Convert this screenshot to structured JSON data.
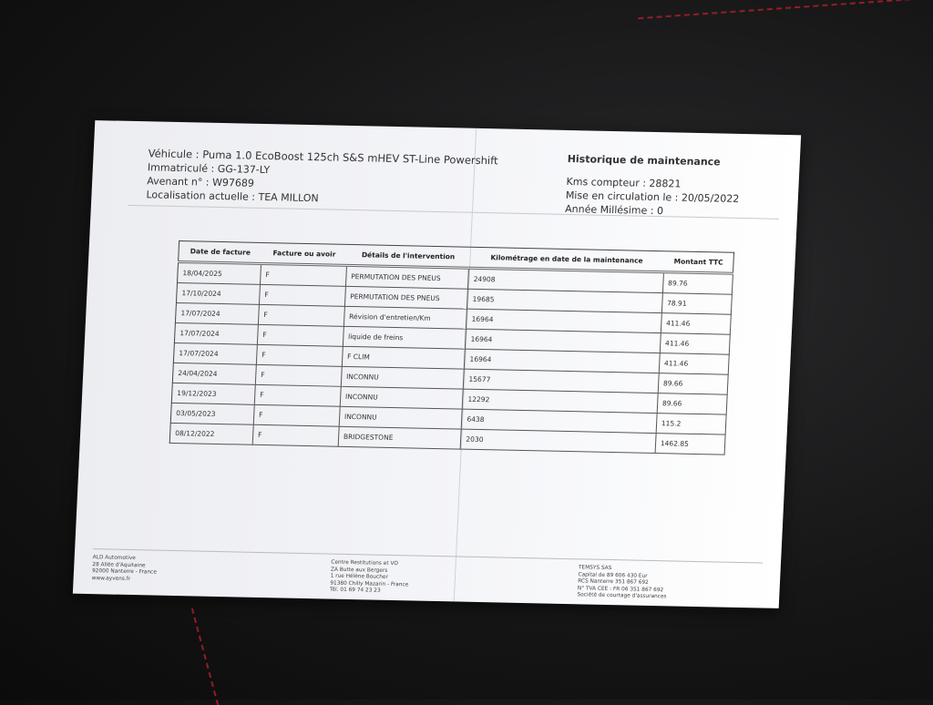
{
  "vehicle_info": {
    "vehicule": "Véhicule : Puma 1.0 EcoBoost 125ch S&S mHEV ST-Line Powershift",
    "immatricule": "Immatriculé : GG-137-LY",
    "avenant": "Avenant n° : W97689",
    "localisation": "Localisation actuelle : TEA MILLON"
  },
  "history": {
    "title": "Historique de maintenance",
    "kms": "Kms compteur : 28821",
    "mise_en_circulation": "Mise en circulation le : 20/05/2022",
    "annee_millesime": "Année Millésime : 0"
  },
  "table": {
    "headers": [
      "Date de facture",
      "Facture ou avoir",
      "Détails de l'intervention",
      "Kilométrage en date de la maintenance",
      "Montant TTC"
    ],
    "rows": [
      [
        "18/04/2025",
        "F",
        "PERMUTATION DES PNEUS",
        "24908",
        "89.76"
      ],
      [
        "17/10/2024",
        "F",
        "PERMUTATION DES PNEUS",
        "19685",
        "78.91"
      ],
      [
        "17/07/2024",
        "F",
        "Révision d'entretien/Km",
        "16964",
        "411.46"
      ],
      [
        "17/07/2024",
        "F",
        "liquide de freins",
        "16964",
        "411.46"
      ],
      [
        "17/07/2024",
        "F",
        "F CLIM",
        "16964",
        "411.46"
      ],
      [
        "24/04/2024",
        "F",
        "INCONNU",
        "15677",
        "89.66"
      ],
      [
        "19/12/2023",
        "F",
        "INCONNU",
        "12292",
        "89.66"
      ],
      [
        "03/05/2023",
        "F",
        "INCONNU",
        "6438",
        "115.2"
      ],
      [
        "08/12/2022",
        "F",
        "BRIDGESTONE",
        "2030",
        "1462.85"
      ]
    ]
  },
  "footer": [
    [
      "ALD Automotive",
      "28 Allée d'Aquitaine",
      "92000 Nanterre - France",
      "www.ayvens.fr"
    ],
    [
      "Centre Restitutions et VO",
      "ZA Butte aux Bergers",
      "1 rue Hélène Boucher",
      "91380 Chilly Mazarin - France",
      "Tél. 01 69 74 23 23"
    ],
    [
      "TEMSYS SAS",
      "Capital de 89 606 430 Eur",
      "RCS Nanterre 351 867 692",
      "N° TVA CEE : FR 06 351 867 692",
      "Société de courtage d'assurances"
    ]
  ]
}
